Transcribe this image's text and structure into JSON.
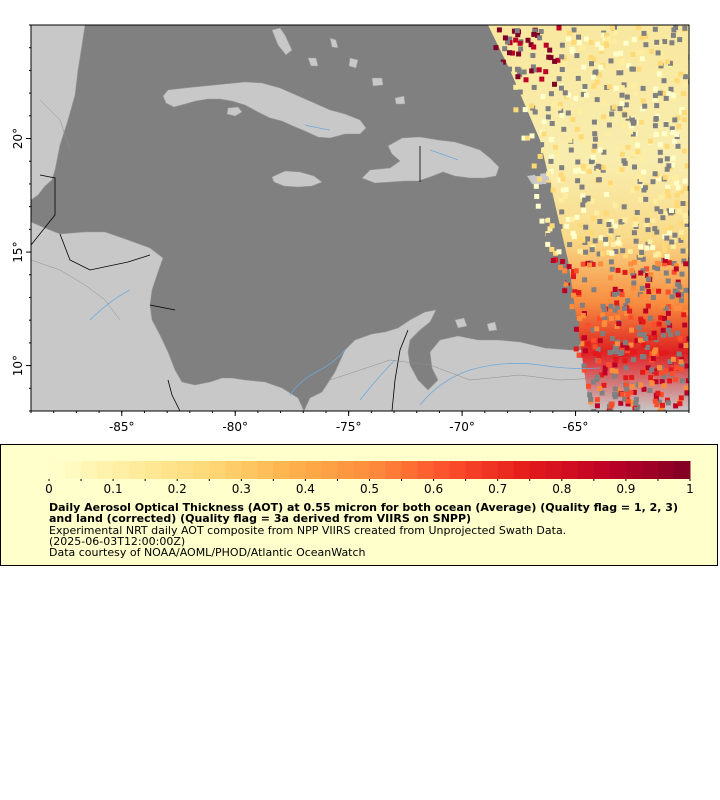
{
  "map": {
    "lon_range": [
      -89,
      -60
    ],
    "lat_range": [
      8,
      25
    ],
    "x_ticks": [
      {
        "value": -85,
        "label": "-85°"
      },
      {
        "value": -80,
        "label": "-80°"
      },
      {
        "value": -75,
        "label": "-75°"
      },
      {
        "value": -70,
        "label": "-70°"
      },
      {
        "value": -65,
        "label": "-65°"
      }
    ],
    "y_ticks": [
      {
        "value": 20,
        "label": "20°"
      },
      {
        "value": 15,
        "label": "15°"
      },
      {
        "value": 10,
        "label": "10°"
      }
    ],
    "colors": {
      "ocean": "#808080",
      "land": "#c8c8c8",
      "rivers": "#6fa8d8",
      "borders": "#000000"
    }
  },
  "legend": {
    "min": 0,
    "max": 1,
    "tick_labels": [
      "0",
      "0.1",
      "0.2",
      "0.3",
      "0.4",
      "0.5",
      "0.6",
      "0.7",
      "0.8",
      "0.9",
      "1"
    ],
    "colormap": [
      "#ffffcc",
      "#ffeda0",
      "#fed976",
      "#feb24c",
      "#fd8d3c",
      "#fc4e2a",
      "#e31a1c",
      "#bd0026",
      "#800026"
    ],
    "title": "Daily Aerosol Optical Thickness (AOT) at 0.55 micron for both ocean (Average) (Quality flag = 1, 2, 3) and land (corrected) (Quality flag = 3a derived from VIIRS on SNPP)",
    "description": "Experimental NRT daily AOT composite from NPP VIIRS created from Unprojected Swath Data.",
    "time": "(2025-06-03T12:00:00Z)",
    "credit": "Data courtesy of NOAA/AOML/PHOD/Atlantic OceanWatch",
    "background": "#ffffcc"
  }
}
